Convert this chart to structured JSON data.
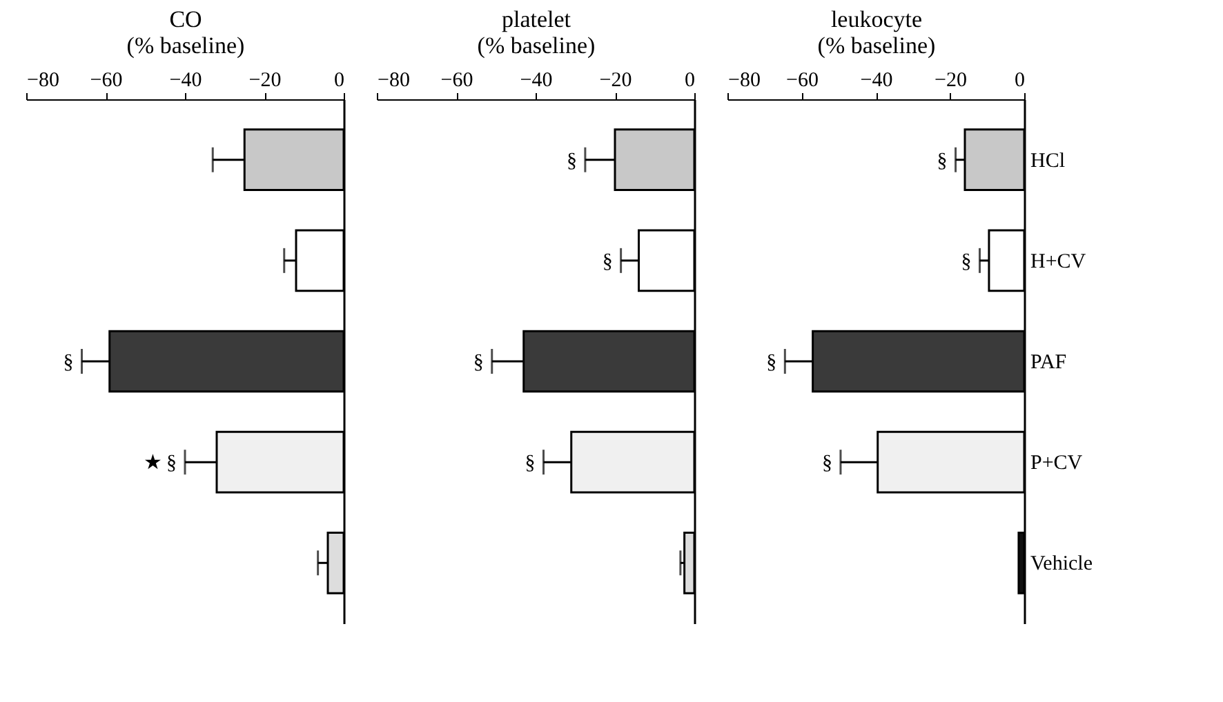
{
  "chart_data": [
    {
      "type": "bar",
      "orientation": "horizontal",
      "xlabel": "CO\n(% baseline)",
      "categories": [
        "HCl",
        "H+CV",
        "PAF",
        "P+CV",
        "Vehicle"
      ],
      "tick_labels": "x",
      "grid": false,
      "values": [
        -25,
        -12,
        -59,
        -32,
        -4
      ],
      "errors": [
        [
          -33,
          -25
        ],
        [
          -15,
          -12
        ],
        [
          -66,
          -59
        ],
        [
          -40,
          -32
        ],
        [
          -6.5,
          -4
        ]
      ],
      "colors": [
        "#c8c8c8",
        "#ffffff",
        "#3a3a3a",
        "#f0f0f0",
        "#dddddd"
      ],
      "xlim": [
        -80,
        0
      ],
      "xticks": [
        -80,
        -60,
        -40,
        -20,
        0
      ],
      "annotations": [
        {
          "text": "§",
          "x": -66,
          "y": "PAF"
        },
        {
          "text": "★ §",
          "x": -40,
          "y": "P+CV"
        }
      ]
    },
    {
      "type": "bar",
      "orientation": "horizontal",
      "xlabel": "platelet\n(% baseline)",
      "categories": [
        "HCl",
        "H+CV",
        "PAF",
        "P+CV",
        "Vehicle"
      ],
      "tick_labels": "x",
      "grid": false,
      "values": [
        -20,
        -14,
        -43,
        -31,
        -2.5
      ],
      "errors": [
        [
          -27.5,
          -20
        ],
        [
          -18.5,
          -14
        ],
        [
          -51,
          -43
        ],
        [
          -38,
          -31
        ],
        [
          -3.5,
          -2.5
        ]
      ],
      "colors": [
        "#c8c8c8",
        "#ffffff",
        "#3a3a3a",
        "#f0f0f0",
        "#dddddd"
      ],
      "xlim": [
        -80,
        0
      ],
      "xticks": [
        -80,
        -60,
        -40,
        -20,
        0
      ],
      "annotations": [
        {
          "text": "§",
          "x": -27.5,
          "y": "HCl"
        },
        {
          "text": "§",
          "x": -18.5,
          "y": "H+CV"
        },
        {
          "text": "§",
          "x": -51,
          "y": "PAF"
        },
        {
          "text": "§",
          "x": -38,
          "y": "P+CV"
        }
      ]
    },
    {
      "type": "bar",
      "orientation": "horizontal",
      "xlabel": "leukocyte\n(% baseline)",
      "categories": [
        "HCl",
        "H+CV",
        "PAF",
        "P+CV",
        "Vehicle"
      ],
      "grid": false,
      "values": [
        -16,
        -9.5,
        -57,
        -39.5,
        -1.5
      ],
      "errors": [
        [
          -18.5,
          -16
        ],
        [
          -12,
          -9.5
        ],
        [
          -64.5,
          -57
        ],
        [
          -49.5,
          -39.5
        ],
        null
      ],
      "colors": [
        "#c8c8c8",
        "#ffffff",
        "#3a3a3a",
        "#f0f0f0",
        "#111111"
      ],
      "xlim": [
        -80,
        0
      ],
      "xticks": [
        -80,
        -60,
        -40,
        -20,
        0
      ],
      "annotations": [
        {
          "text": "§",
          "x": -18.5,
          "y": "HCl"
        },
        {
          "text": "§",
          "x": -12,
          "y": "H+CV"
        },
        {
          "text": "§",
          "x": -64.5,
          "y": "PAF"
        },
        {
          "text": "§",
          "x": -49.5,
          "y": "P+CV"
        }
      ]
    }
  ]
}
